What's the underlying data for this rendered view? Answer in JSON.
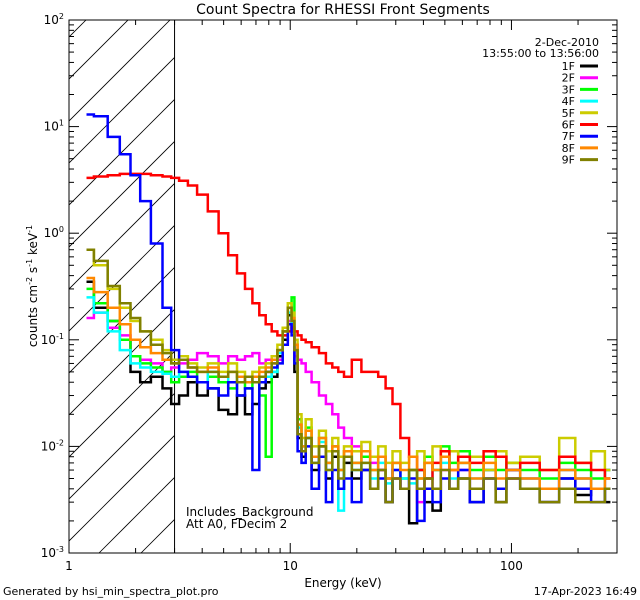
{
  "chart_data": {
    "type": "line",
    "title": "Count Spectra for RHESSI Front Segments",
    "xlabel": "Energy (keV)",
    "ylabel_parts": {
      "a": "counts cm",
      "b": "-2",
      "c": " s",
      "d": "-1",
      "e": " keV",
      "f": "-1"
    },
    "x_scale": "log",
    "y_scale": "log",
    "xlim": [
      1,
      300
    ],
    "ylim": [
      0.001,
      100
    ],
    "x_ticks": [
      {
        "v": 1,
        "label": "1"
      },
      {
        "v": 10,
        "label": "10"
      },
      {
        "v": 100,
        "label": "100"
      }
    ],
    "y_ticks": [
      {
        "v": 0.001,
        "base": "10",
        "exp": "-3"
      },
      {
        "v": 0.01,
        "base": "10",
        "exp": "-2"
      },
      {
        "v": 0.1,
        "base": "10",
        "exp": "-1"
      },
      {
        "v": 1,
        "base": "10",
        "exp": "0"
      },
      {
        "v": 10,
        "base": "10",
        "exp": "1"
      },
      {
        "v": 100,
        "base": "10",
        "exp": "2"
      }
    ],
    "date": "2-Dec-2010",
    "time_range": "13:55:00 to 13:56:00",
    "hatched_region": {
      "x0": 1,
      "x1": 3.0
    },
    "annotations": [
      "Includes_Background",
      "Att A0, FDecim 2"
    ],
    "footer_left": "Generated by hsi_min_spectra_plot.pro",
    "footer_right": "17-Apr-2023 16:49",
    "legend_position": "top-right",
    "series": [
      {
        "name": "1F",
        "color": "#000000",
        "x": [
          1.2,
          1.4,
          1.6,
          1.8,
          2.0,
          2.2,
          2.5,
          2.8,
          3.0,
          3.3,
          3.6,
          4,
          4.5,
          5,
          5.5,
          6,
          6.5,
          7,
          7.5,
          8,
          8.5,
          9,
          9.5,
          10,
          10.3,
          10.6,
          11,
          11.5,
          12,
          13,
          14,
          15,
          16,
          17,
          18,
          20,
          22,
          24,
          26,
          28,
          30,
          33,
          36,
          39,
          42,
          46,
          50,
          55,
          60,
          70,
          80,
          90,
          100,
          120,
          150,
          180,
          210,
          250,
          280
        ],
        "values": [
          0.35,
          0.2,
          0.15,
          0.1,
          0.05,
          0.04,
          0.045,
          0.035,
          0.025,
          0.03,
          0.04,
          0.03,
          0.035,
          0.022,
          0.02,
          0.03,
          0.02,
          0.025,
          0.035,
          0.04,
          0.045,
          0.07,
          0.1,
          0.17,
          0.12,
          0.05,
          0.012,
          0.008,
          0.012,
          0.006,
          0.01,
          0.005,
          0.008,
          0.004,
          0.007,
          0.005,
          0.006,
          0.004,
          0.006,
          0.003,
          0.005,
          0.004,
          0.0019,
          0.006,
          0.003,
          0.0025,
          0.008,
          0.004,
          0.005,
          0.003,
          0.006,
          0.003,
          0.005,
          0.004,
          0.003,
          0.005,
          0.0035,
          0.004,
          0.003
        ]
      },
      {
        "name": "2F",
        "color": "#ff00ff",
        "x": [
          1.2,
          1.4,
          1.6,
          1.8,
          2.0,
          2.2,
          2.5,
          2.8,
          3.0,
          3.3,
          3.6,
          4,
          4.5,
          5,
          5.5,
          6,
          6.5,
          7,
          7.5,
          8,
          8.5,
          9,
          9.5,
          10,
          10.3,
          10.6,
          11,
          11.5,
          12,
          13,
          14,
          15,
          16,
          17,
          18,
          20,
          22,
          24,
          26,
          28,
          30,
          33,
          36,
          39,
          42,
          46,
          50,
          55,
          60,
          70,
          80,
          90,
          100,
          120,
          150,
          180,
          210,
          250,
          280
        ],
        "values": [
          0.16,
          0.18,
          0.13,
          0.11,
          0.07,
          0.065,
          0.06,
          0.05,
          0.055,
          0.06,
          0.065,
          0.075,
          0.07,
          0.06,
          0.07,
          0.065,
          0.07,
          0.075,
          0.06,
          0.065,
          0.06,
          0.065,
          0.09,
          0.15,
          0.12,
          0.07,
          0.065,
          0.06,
          0.05,
          0.04,
          0.03,
          0.025,
          0.02,
          0.015,
          0.012,
          0.01,
          0.008,
          0.007,
          0.006,
          0.005,
          0.005,
          0.004,
          0.006,
          0.003,
          0.005,
          0.004,
          0.006,
          0.004,
          0.006,
          0.004,
          0.005,
          0.004,
          0.005,
          0.005,
          0.004,
          0.006,
          0.005,
          0.004,
          0.006
        ]
      },
      {
        "name": "3F",
        "color": "#00ff00",
        "x": [
          1.2,
          1.4,
          1.6,
          1.8,
          2.0,
          2.2,
          2.5,
          2.8,
          3.0,
          3.3,
          3.6,
          4,
          4.5,
          5,
          5.5,
          6,
          6.5,
          7,
          7.5,
          8,
          8.5,
          9,
          9.5,
          10,
          10.3,
          10.6,
          11,
          11.5,
          12,
          13,
          14,
          15,
          16,
          17,
          18,
          20,
          22,
          24,
          26,
          28,
          30,
          33,
          36,
          39,
          42,
          46,
          50,
          55,
          60,
          70,
          80,
          90,
          100,
          120,
          150,
          180,
          210,
          250,
          280
        ],
        "values": [
          0.3,
          0.22,
          0.15,
          0.1,
          0.07,
          0.06,
          0.055,
          0.05,
          0.04,
          0.045,
          0.05,
          0.04,
          0.045,
          0.04,
          0.035,
          0.04,
          0.035,
          0.04,
          0.03,
          0.008,
          0.05,
          0.08,
          0.12,
          0.2,
          0.25,
          0.09,
          0.018,
          0.01,
          0.015,
          0.008,
          0.012,
          0.007,
          0.01,
          0.006,
          0.009,
          0.007,
          0.008,
          0.006,
          0.008,
          0.005,
          0.007,
          0.005,
          0.006,
          0.005,
          0.008,
          0.006,
          0.01,
          0.007,
          0.009,
          0.006,
          0.008,
          0.006,
          0.007,
          0.006,
          0.005,
          0.007,
          0.006,
          0.005,
          0.006
        ]
      },
      {
        "name": "4F",
        "color": "#00ffff",
        "x": [
          1.2,
          1.4,
          1.6,
          1.8,
          2.0,
          2.2,
          2.5,
          2.8,
          3.0,
          3.3,
          3.6,
          4,
          4.5,
          5,
          5.5,
          6,
          6.5,
          7,
          7.5,
          8,
          8.5,
          9,
          9.5,
          10,
          10.3,
          10.6,
          11,
          11.5,
          12,
          13,
          14,
          15,
          16,
          17,
          18,
          20,
          22,
          24,
          26,
          28,
          30,
          33,
          36,
          39,
          42,
          46,
          50,
          55,
          60,
          70,
          80,
          90,
          100,
          120,
          150,
          180,
          210,
          250,
          280
        ],
        "values": [
          0.25,
          0.18,
          0.12,
          0.08,
          0.06,
          0.055,
          0.05,
          0.048,
          0.045,
          0.05,
          0.045,
          0.04,
          0.05,
          0.045,
          0.04,
          0.045,
          0.04,
          0.045,
          0.04,
          0.045,
          0.05,
          0.075,
          0.11,
          0.18,
          0.14,
          0.08,
          0.015,
          0.01,
          0.012,
          0.007,
          0.011,
          0.006,
          0.009,
          0.0025,
          0.008,
          0.006,
          0.007,
          0.005,
          0.007,
          0.0045,
          0.006,
          0.005,
          0.0045,
          0.006,
          0.005,
          0.006,
          0.007,
          0.005,
          0.007,
          0.005,
          0.006,
          0.004,
          0.006,
          0.005,
          0.004,
          0.006,
          0.005,
          0.004,
          0.006
        ]
      },
      {
        "name": "5F",
        "color": "#cccc00",
        "x": [
          1.2,
          1.4,
          1.6,
          1.8,
          2.0,
          2.2,
          2.5,
          2.8,
          3.0,
          3.3,
          3.6,
          4,
          4.5,
          5,
          5.5,
          6,
          6.5,
          7,
          7.5,
          8,
          8.5,
          9,
          9.5,
          10,
          10.3,
          10.6,
          11,
          11.5,
          12,
          13,
          14,
          15,
          16,
          17,
          18,
          20,
          22,
          24,
          26,
          28,
          30,
          33,
          36,
          39,
          42,
          46,
          50,
          55,
          60,
          70,
          80,
          90,
          100,
          120,
          150,
          180,
          210,
          250,
          280
        ],
        "values": [
          0.7,
          0.5,
          0.3,
          0.2,
          0.15,
          0.12,
          0.1,
          0.08,
          0.065,
          0.07,
          0.06,
          0.055,
          0.06,
          0.05,
          0.06,
          0.05,
          0.045,
          0.05,
          0.055,
          0.06,
          0.07,
          0.09,
          0.13,
          0.22,
          0.18,
          0.1,
          0.02,
          0.012,
          0.018,
          0.01,
          0.014,
          0.009,
          0.012,
          0.008,
          0.01,
          0.009,
          0.011,
          0.008,
          0.01,
          0.007,
          0.009,
          0.007,
          0.008,
          0.009,
          0.007,
          0.01,
          0.008,
          0.009,
          0.007,
          0.008,
          0.006,
          0.009,
          0.007,
          0.008,
          0.006,
          0.012,
          0.007,
          0.009,
          0.006
        ]
      },
      {
        "name": "6F",
        "color": "#ff0000",
        "x": [
          1.2,
          1.4,
          1.6,
          1.8,
          2.0,
          2.2,
          2.5,
          2.8,
          3.0,
          3.3,
          3.6,
          4,
          4.5,
          5,
          5.5,
          6,
          6.5,
          7,
          7.5,
          8,
          8.5,
          9,
          9.5,
          10,
          10.3,
          10.6,
          11,
          11.5,
          12,
          13,
          14,
          15,
          16,
          17,
          18,
          20,
          22,
          24,
          26,
          28,
          30,
          33,
          36,
          39,
          42,
          46,
          50,
          55,
          60,
          70,
          80,
          90,
          100,
          120,
          150,
          180,
          210,
          250,
          280
        ],
        "values": [
          3.3,
          3.4,
          3.5,
          3.6,
          3.6,
          3.6,
          3.5,
          3.4,
          3.3,
          3.1,
          2.8,
          2.3,
          1.6,
          1.0,
          0.62,
          0.42,
          0.3,
          0.22,
          0.17,
          0.14,
          0.12,
          0.11,
          0.11,
          0.12,
          0.13,
          0.12,
          0.11,
          0.1,
          0.095,
          0.085,
          0.075,
          0.06,
          0.055,
          0.05,
          0.045,
          0.065,
          0.05,
          0.05,
          0.045,
          0.035,
          0.025,
          0.012,
          0.008,
          0.006,
          0.005,
          0.007,
          0.009,
          0.006,
          0.008,
          0.007,
          0.009,
          0.008,
          0.006,
          0.007,
          0.006,
          0.008,
          0.007,
          0.006,
          0.005
        ]
      },
      {
        "name": "7F",
        "color": "#0000ff",
        "x": [
          1.2,
          1.4,
          1.6,
          1.8,
          2.0,
          2.2,
          2.5,
          2.8,
          3.0,
          3.3,
          3.6,
          4,
          4.5,
          5,
          5.5,
          6,
          6.5,
          7,
          7.5,
          8,
          8.5,
          9,
          9.5,
          10,
          10.3,
          10.6,
          11,
          11.5,
          12,
          13,
          14,
          15,
          16,
          17,
          18,
          20,
          22,
          24,
          26,
          28,
          30,
          33,
          36,
          39,
          42,
          46,
          50,
          55,
          60,
          70,
          80,
          90,
          100,
          120,
          150,
          180,
          210,
          250,
          280
        ],
        "values": [
          13,
          12.5,
          8,
          5.5,
          3.5,
          2,
          0.8,
          0.2,
          0.08,
          0.05,
          0.045,
          0.04,
          0.035,
          0.03,
          0.04,
          0.03,
          0.035,
          0.006,
          0.04,
          0.05,
          0.055,
          0.06,
          0.09,
          0.14,
          0.11,
          0.06,
          0.009,
          0.007,
          0.01,
          0.004,
          0.008,
          0.003,
          0.006,
          0.004,
          0.005,
          0.003,
          0.006,
          0.004,
          0.005,
          0.003,
          0.006,
          0.004,
          0.005,
          0.002,
          0.004,
          0.003,
          0.005,
          0.004,
          0.006,
          0.003,
          0.005,
          0.004,
          0.006,
          0.004,
          0.003,
          0.005,
          0.004,
          0.003,
          0.004
        ]
      },
      {
        "name": "8F",
        "color": "#ff8800",
        "x": [
          1.2,
          1.4,
          1.6,
          1.8,
          2.0,
          2.2,
          2.5,
          2.8,
          3.0,
          3.3,
          3.6,
          4,
          4.5,
          5,
          5.5,
          6,
          6.5,
          7,
          7.5,
          8,
          8.5,
          9,
          9.5,
          10,
          10.3,
          10.6,
          11,
          11.5,
          12,
          13,
          14,
          15,
          16,
          17,
          18,
          20,
          22,
          24,
          26,
          28,
          30,
          33,
          36,
          39,
          42,
          46,
          50,
          55,
          60,
          70,
          80,
          90,
          100,
          120,
          150,
          180,
          210,
          250,
          280
        ],
        "values": [
          0.38,
          0.28,
          0.2,
          0.14,
          0.1,
          0.085,
          0.075,
          0.065,
          0.06,
          0.065,
          0.055,
          0.05,
          0.055,
          0.045,
          0.05,
          0.045,
          0.04,
          0.045,
          0.05,
          0.055,
          0.065,
          0.08,
          0.12,
          0.2,
          0.16,
          0.09,
          0.016,
          0.01,
          0.014,
          0.008,
          0.012,
          0.007,
          0.01,
          0.006,
          0.009,
          0.007,
          0.009,
          0.006,
          0.008,
          0.005,
          0.007,
          0.006,
          0.008,
          0.005,
          0.007,
          0.006,
          0.008,
          0.006,
          0.007,
          0.005,
          0.007,
          0.005,
          0.006,
          0.005,
          0.004,
          0.006,
          0.005,
          0.004,
          0.005
        ]
      },
      {
        "name": "9F",
        "color": "#808000",
        "x": [
          1.2,
          1.4,
          1.6,
          1.8,
          2.0,
          2.2,
          2.5,
          2.8,
          3.0,
          3.3,
          3.6,
          4,
          4.5,
          5,
          5.5,
          6,
          6.5,
          7,
          7.5,
          8,
          8.5,
          9,
          9.5,
          10,
          10.3,
          10.6,
          11,
          11.5,
          12,
          13,
          14,
          15,
          16,
          17,
          18,
          20,
          22,
          24,
          26,
          28,
          30,
          33,
          36,
          39,
          42,
          46,
          50,
          55,
          60,
          70,
          80,
          90,
          100,
          120,
          150,
          180,
          210,
          250,
          280
        ],
        "values": [
          0.7,
          0.55,
          0.32,
          0.22,
          0.16,
          0.12,
          0.09,
          0.075,
          0.06,
          0.065,
          0.055,
          0.05,
          0.05,
          0.045,
          0.05,
          0.04,
          0.045,
          0.04,
          0.045,
          0.05,
          0.06,
          0.08,
          0.12,
          0.2,
          0.15,
          0.08,
          0.013,
          0.009,
          0.012,
          0.007,
          0.01,
          0.006,
          0.009,
          0.005,
          0.008,
          0.006,
          0.007,
          0.004,
          0.006,
          0.003,
          0.005,
          0.004,
          0.006,
          0.004,
          0.005,
          0.004,
          0.006,
          0.004,
          0.005,
          0.004,
          0.005,
          0.003,
          0.005,
          0.004,
          0.003,
          0.004,
          0.003,
          0.003,
          0.004
        ]
      }
    ]
  }
}
